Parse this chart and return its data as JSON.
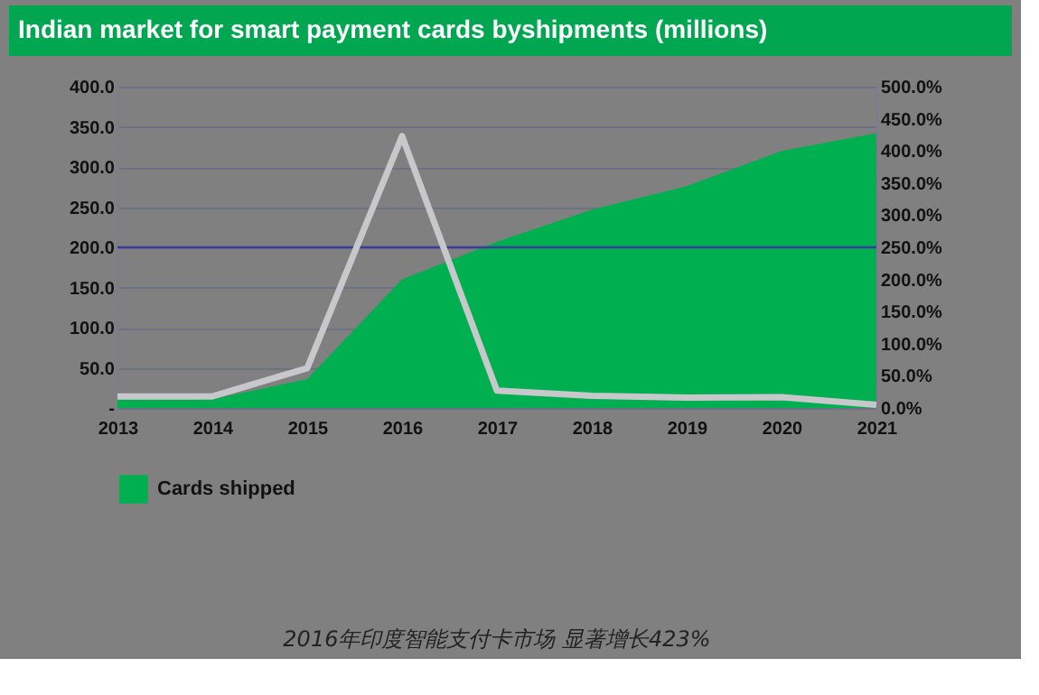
{
  "chart_data": {
    "type": "area",
    "title": "Indian market for smart payment cards byshipments (millions)",
    "categories": [
      "2013",
      "2014",
      "2015",
      "2016",
      "2017",
      "2018",
      "2019",
      "2020",
      "2021"
    ],
    "series": [
      {
        "name": "Cards shipped",
        "color": "#00b050",
        "values": [
          10,
          11,
          36,
          160,
          207,
          247,
          276,
          320,
          342
        ]
      },
      {
        "type": "line",
        "axis": "y2",
        "color": "#c8c8cc",
        "values": [
          18,
          18,
          62,
          423,
          27,
          19,
          16,
          17,
          5
        ]
      }
    ],
    "ylim": [
      0,
      400
    ],
    "yticks": [
      {
        "value": 0,
        "label": "-"
      },
      {
        "value": 50,
        "label": "50.0"
      },
      {
        "value": 100,
        "label": "100.0"
      },
      {
        "value": 150,
        "label": "150.0"
      },
      {
        "value": 200,
        "label": "200.0"
      },
      {
        "value": 250,
        "label": "250.0"
      },
      {
        "value": 300,
        "label": "300.0"
      },
      {
        "value": 350,
        "label": "350.0"
      },
      {
        "value": 400,
        "label": "400.0"
      }
    ],
    "y2lim": [
      0,
      500
    ],
    "y2ticks": [
      {
        "value": 0,
        "label": "0.0%"
      },
      {
        "value": 50,
        "label": "50.0%"
      },
      {
        "value": 100,
        "label": "100.0%"
      },
      {
        "value": 150,
        "label": "150.0%"
      },
      {
        "value": 200,
        "label": "200.0%"
      },
      {
        "value": 250,
        "label": "250.0%"
      },
      {
        "value": 300,
        "label": "300.0%"
      },
      {
        "value": 350,
        "label": "350.0%"
      },
      {
        "value": 400,
        "label": "400.0%"
      },
      {
        "value": 450,
        "label": "450.0%"
      },
      {
        "value": 500,
        "label": "500.0%"
      }
    ],
    "ref_lines": [
      {
        "axis": "y",
        "value": 200,
        "color": "#3c3c9c"
      }
    ],
    "grid": "y",
    "legend": "bottom",
    "marker": "none",
    "line_style": "solid",
    "annotations": [
      "2016年印度智能支付卡市场 显著增长423%"
    ]
  }
}
